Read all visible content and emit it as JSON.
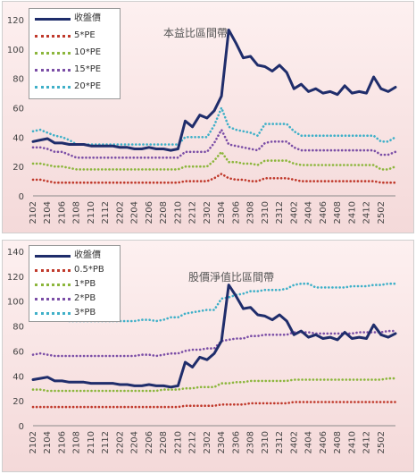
{
  "chart_data": [
    {
      "type": "line",
      "title": "本益比區間帶",
      "x_ticks": [
        "2102",
        "2104",
        "2106",
        "2108",
        "2110",
        "2112",
        "2202",
        "2204",
        "2206",
        "2208",
        "2210",
        "2212",
        "2302",
        "2304",
        "2306",
        "2308",
        "2310",
        "2312",
        "2402",
        "2404",
        "2406",
        "2408",
        "2410",
        "2412",
        "2502"
      ],
      "ylim": [
        0,
        120
      ],
      "y_ticks": [
        0,
        20,
        40,
        60,
        80,
        100,
        120
      ],
      "legend_position": "top-left",
      "grid": false,
      "series": [
        {
          "name": "收盤價",
          "color": "#1f2d6b",
          "style": "solid",
          "values": [
            37,
            38,
            39,
            36,
            36,
            35,
            35,
            35,
            34,
            34,
            34,
            34,
            33,
            33,
            32,
            32,
            33,
            32,
            32,
            31,
            32,
            51,
            47,
            55,
            53,
            58,
            68,
            113,
            104,
            94,
            95,
            89,
            88,
            85,
            89,
            84,
            73,
            76,
            71,
            73,
            70,
            71,
            69,
            75,
            70,
            71,
            70,
            81,
            73,
            71,
            74
          ]
        },
        {
          "name": "5*PE",
          "color": "#c0392b",
          "style": "dotted",
          "values": [
            11,
            11,
            10,
            9,
            9,
            9,
            9,
            9,
            9,
            9,
            9,
            9,
            9,
            9,
            9,
            9,
            9,
            9,
            9,
            9,
            9,
            10,
            10,
            10,
            10,
            12,
            15,
            12,
            11,
            11,
            10,
            10,
            12,
            12,
            12,
            12,
            11,
            10,
            10,
            10,
            10,
            10,
            10,
            10,
            10,
            10,
            10,
            10,
            9,
            9,
            9
          ]
        },
        {
          "name": "10*PE",
          "color": "#8cb63c",
          "style": "dotted",
          "values": [
            22,
            22,
            21,
            20,
            20,
            19,
            18,
            18,
            18,
            18,
            18,
            18,
            18,
            18,
            18,
            18,
            18,
            18,
            18,
            18,
            18,
            20,
            20,
            20,
            20,
            24,
            30,
            23,
            23,
            22,
            22,
            21,
            24,
            24,
            24,
            24,
            22,
            21,
            21,
            21,
            21,
            21,
            21,
            21,
            21,
            21,
            21,
            21,
            18,
            18,
            20
          ]
        },
        {
          "name": "15*PE",
          "color": "#7b4ea6",
          "style": "dotted",
          "values": [
            33,
            33,
            32,
            30,
            30,
            28,
            26,
            26,
            26,
            26,
            26,
            26,
            26,
            26,
            26,
            26,
            26,
            26,
            26,
            26,
            26,
            30,
            30,
            30,
            30,
            36,
            45,
            35,
            34,
            33,
            32,
            31,
            36,
            37,
            37,
            37,
            33,
            31,
            31,
            31,
            31,
            31,
            31,
            31,
            31,
            31,
            31,
            31,
            28,
            28,
            30
          ]
        },
        {
          "name": "20*PE",
          "color": "#3fb0c8",
          "style": "dotted",
          "values": [
            44,
            45,
            43,
            41,
            40,
            38,
            35,
            35,
            35,
            35,
            35,
            35,
            35,
            35,
            35,
            35,
            35,
            35,
            35,
            35,
            35,
            40,
            40,
            40,
            40,
            48,
            60,
            47,
            45,
            44,
            43,
            41,
            49,
            49,
            49,
            49,
            44,
            41,
            41,
            41,
            41,
            41,
            41,
            41,
            41,
            41,
            41,
            41,
            37,
            37,
            40
          ]
        }
      ]
    },
    {
      "type": "line",
      "title": "股價淨值比區間帶",
      "x_ticks": [
        "2102",
        "2104",
        "2106",
        "2108",
        "2110",
        "2112",
        "2202",
        "2204",
        "2206",
        "2208",
        "2210",
        "2212",
        "2302",
        "2304",
        "2306",
        "2308",
        "2310",
        "2312",
        "2402",
        "2404",
        "2406",
        "2408",
        "2410",
        "2412",
        "2502"
      ],
      "ylim": [
        0,
        140
      ],
      "y_ticks": [
        0,
        20,
        40,
        60,
        80,
        100,
        120,
        140
      ],
      "legend_position": "top-left",
      "grid": false,
      "series": [
        {
          "name": "收盤價",
          "color": "#1f2d6b",
          "style": "solid",
          "values": [
            37,
            38,
            39,
            36,
            36,
            35,
            35,
            35,
            34,
            34,
            34,
            34,
            33,
            33,
            32,
            32,
            33,
            32,
            32,
            31,
            32,
            51,
            47,
            55,
            53,
            58,
            68,
            113,
            104,
            94,
            95,
            89,
            88,
            85,
            89,
            84,
            73,
            76,
            71,
            73,
            70,
            71,
            69,
            75,
            70,
            71,
            70,
            81,
            73,
            71,
            74
          ]
        },
        {
          "name": "0.5*PB",
          "color": "#c0392b",
          "style": "dotted",
          "values": [
            15,
            15,
            15,
            15,
            15,
            15,
            15,
            15,
            15,
            15,
            15,
            15,
            15,
            15,
            15,
            15,
            15,
            15,
            15,
            15,
            15,
            16,
            16,
            16,
            16,
            16,
            17,
            17,
            17,
            17,
            18,
            18,
            18,
            18,
            18,
            18,
            19,
            19,
            19,
            19,
            19,
            19,
            19,
            19,
            19,
            19,
            19,
            19,
            19,
            19,
            19
          ]
        },
        {
          "name": "1*PB",
          "color": "#8cb63c",
          "style": "dotted",
          "values": [
            29,
            29,
            28,
            28,
            28,
            28,
            28,
            28,
            28,
            28,
            28,
            28,
            28,
            28,
            28,
            28,
            28,
            28,
            29,
            29,
            29,
            30,
            30,
            31,
            31,
            31,
            34,
            34,
            35,
            35,
            36,
            36,
            36,
            36,
            36,
            36,
            37,
            37,
            37,
            37,
            37,
            37,
            37,
            37,
            37,
            37,
            37,
            37,
            37,
            38,
            38
          ]
        },
        {
          "name": "2*PB",
          "color": "#7b4ea6",
          "style": "dotted",
          "values": [
            57,
            58,
            57,
            56,
            56,
            56,
            56,
            56,
            56,
            56,
            56,
            56,
            56,
            56,
            56,
            57,
            57,
            56,
            57,
            58,
            58,
            60,
            61,
            61,
            62,
            62,
            68,
            69,
            70,
            70,
            72,
            72,
            73,
            73,
            73,
            73,
            75,
            75,
            75,
            74,
            74,
            74,
            74,
            74,
            74,
            75,
            75,
            75,
            75,
            76,
            76
          ]
        },
        {
          "name": "3*PB",
          "color": "#3fb0c8",
          "style": "dotted",
          "values": [
            86,
            87,
            86,
            85,
            85,
            84,
            84,
            84,
            84,
            84,
            84,
            84,
            84,
            84,
            84,
            85,
            85,
            84,
            85,
            87,
            87,
            90,
            91,
            92,
            93,
            93,
            102,
            103,
            105,
            106,
            108,
            108,
            109,
            109,
            109,
            110,
            113,
            114,
            114,
            111,
            111,
            111,
            111,
            111,
            112,
            112,
            112,
            113,
            113,
            114,
            114
          ]
        }
      ]
    }
  ]
}
